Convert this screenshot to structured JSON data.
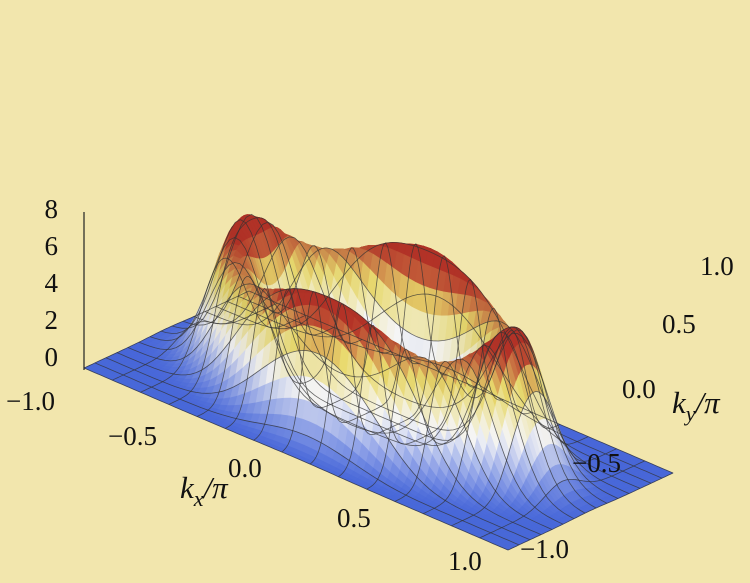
{
  "chart_data": {
    "type": "surface3d",
    "title": "",
    "xlabel": "k_x/π",
    "ylabel": "k_y/π",
    "zlabel": "",
    "x_range": [
      -1.0,
      1.0
    ],
    "y_range": [
      -1.0,
      1.0
    ],
    "z_range": [
      0,
      8
    ],
    "x_ticks": [
      "−1.0",
      "−0.5",
      "0.0",
      "0.5",
      "1.0"
    ],
    "y_ticks": [
      "−1.0",
      "−0.5",
      "0.0",
      "0.5",
      "1.0"
    ],
    "z_ticks": [
      "0",
      "2",
      "4",
      "6",
      "8"
    ],
    "surface": {
      "shape": "ring",
      "ring_radius": 0.62,
      "ring_width": 0.17,
      "peak_value": 6.8,
      "baseline_value": 0.1
    },
    "mesh_lines": "on",
    "colors": {
      "background": "#f2e6ad",
      "low": "#4a6ef0",
      "mid": "#ffffff",
      "high_warm": "#f0e070",
      "peak": "#c0362a"
    }
  }
}
